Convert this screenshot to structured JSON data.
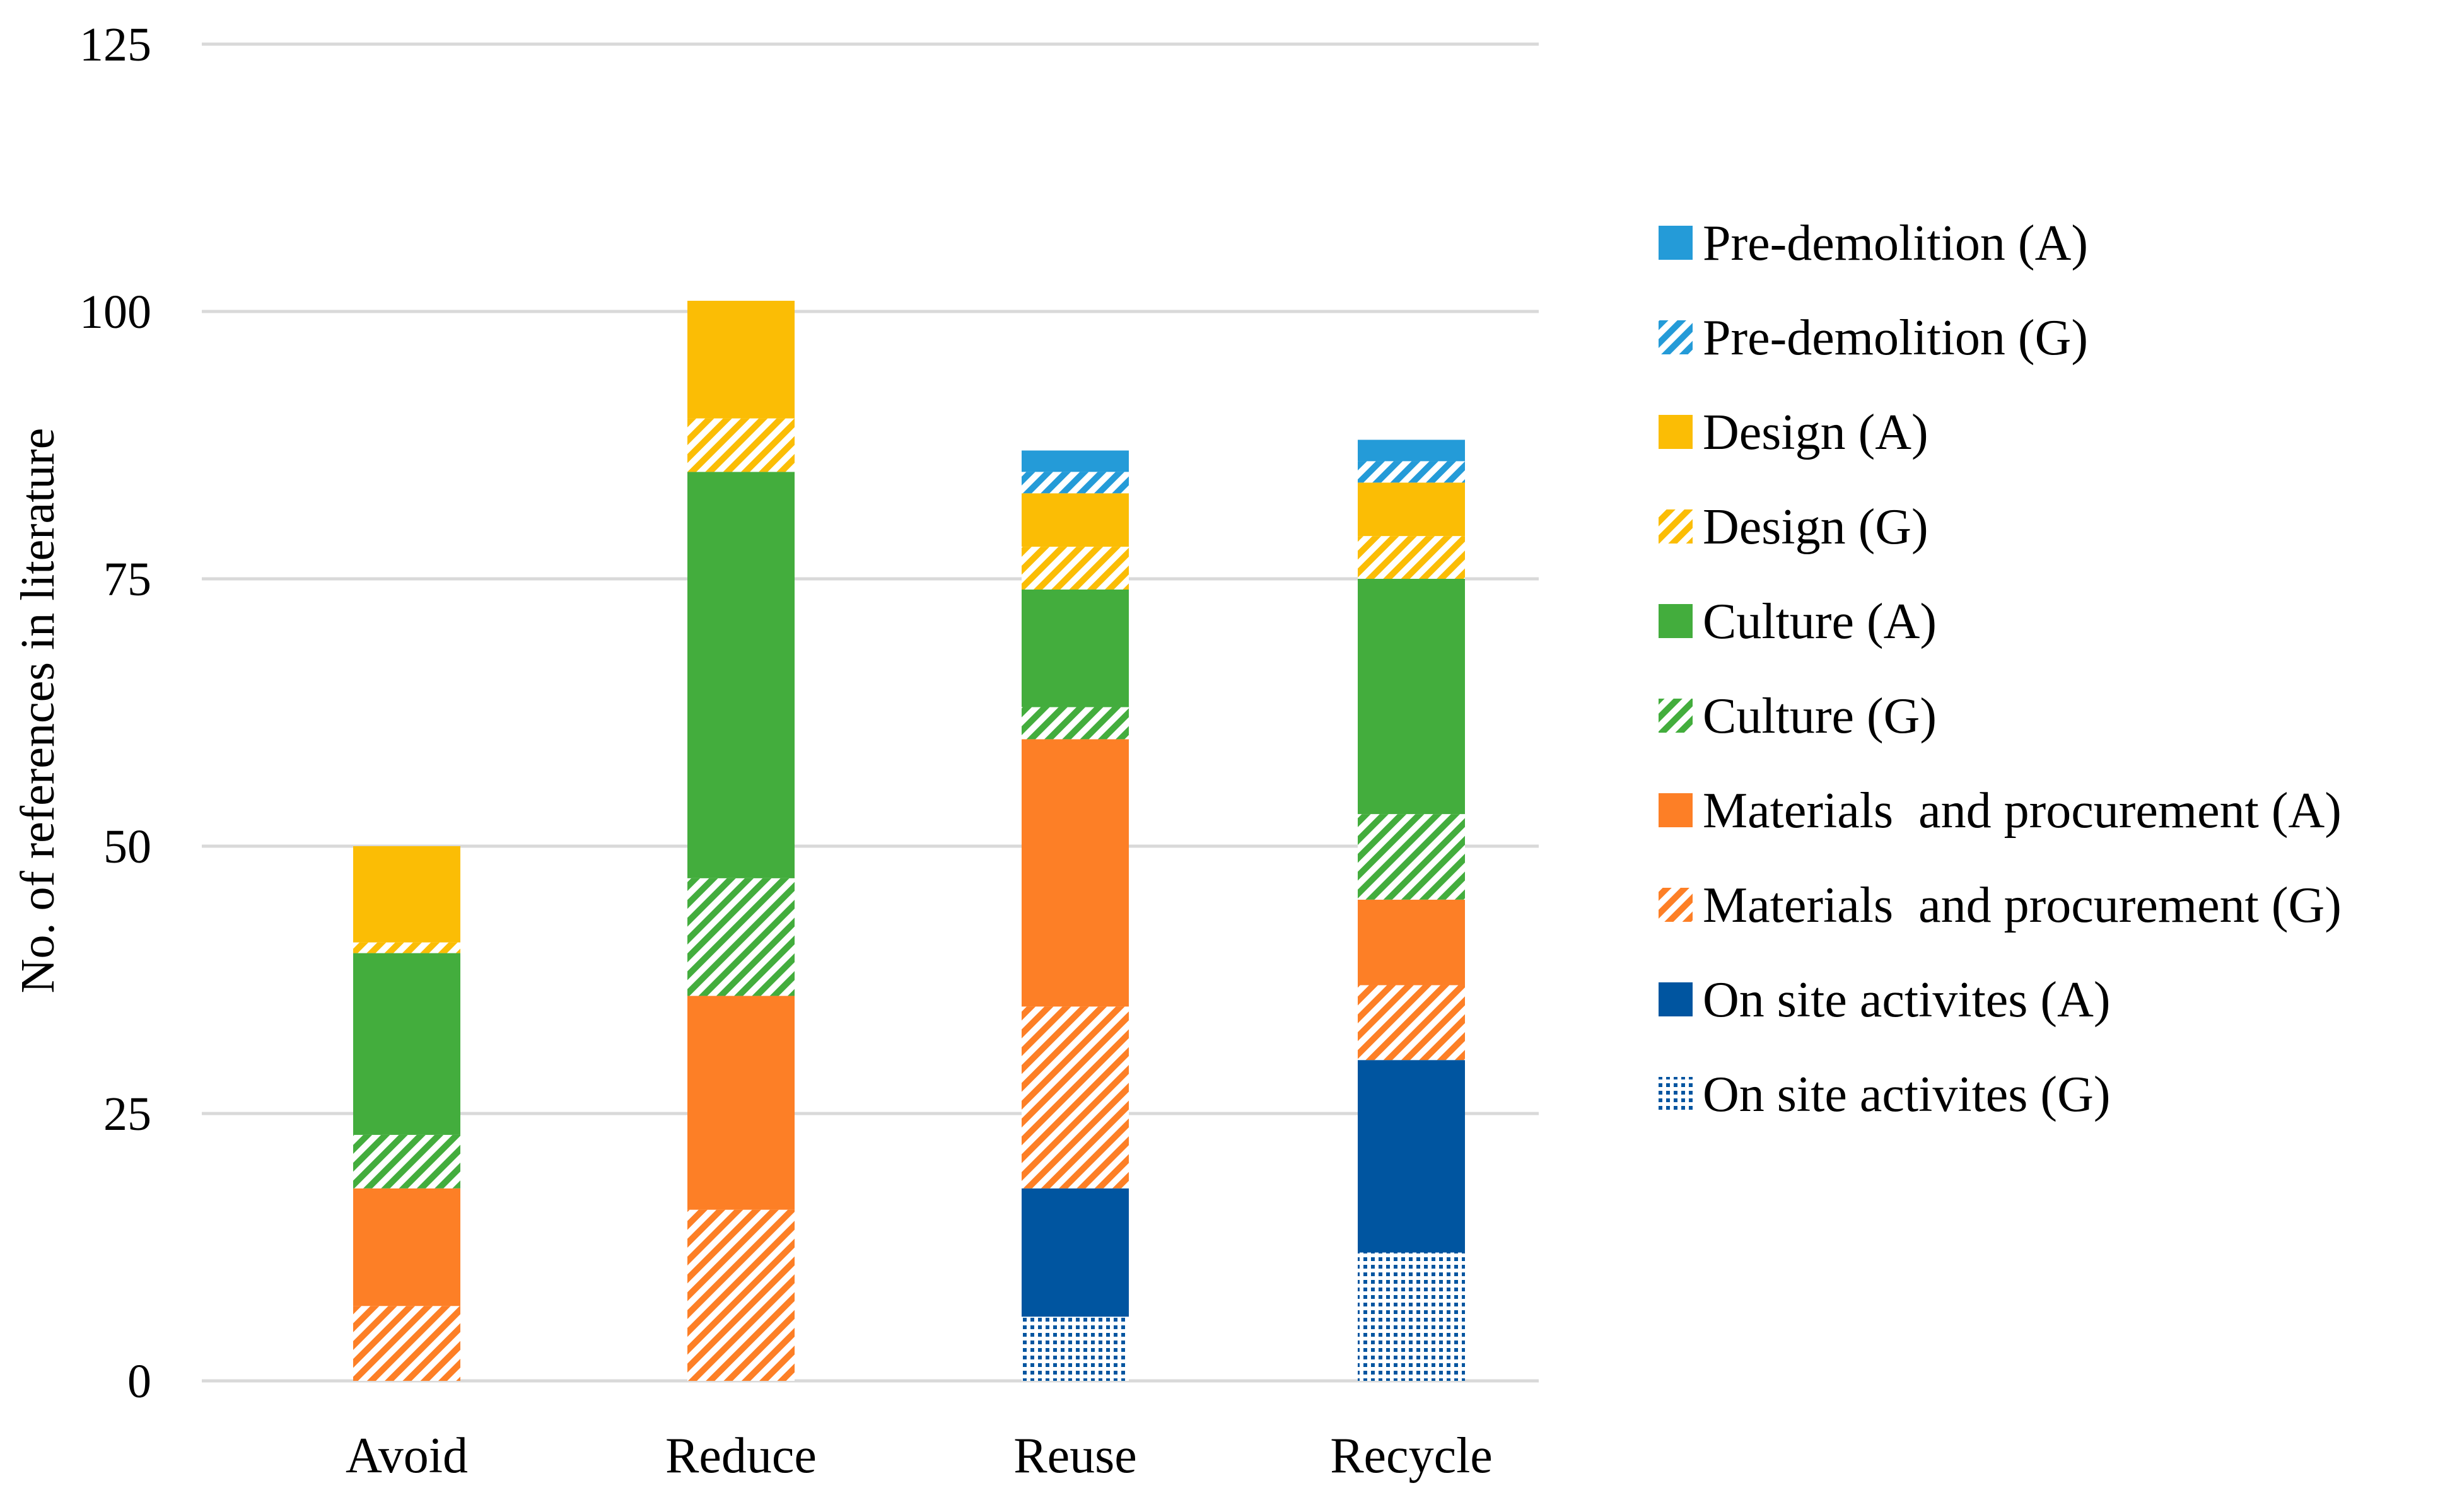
{
  "chart_data": {
    "type": "bar",
    "stacked": true,
    "title": "",
    "xlabel": "",
    "ylabel": "No. of references in literature",
    "ylim": [
      0,
      125
    ],
    "yticks": [
      0,
      25,
      50,
      75,
      100,
      125
    ],
    "grid": true,
    "legend_position": "right",
    "categories": [
      "Avoid",
      "Reduce",
      "Reuse",
      "Recycle"
    ],
    "series": [
      {
        "name": "On site activites (G)",
        "values": [
          0,
          0,
          6,
          12
        ],
        "color": "#0055a0",
        "pattern": "dots"
      },
      {
        "name": "On site activites (A)",
        "values": [
          0,
          0,
          12,
          18
        ],
        "color": "#0055a0",
        "pattern": "solid"
      },
      {
        "name": "Materials  and procurement (G)",
        "values": [
          7,
          16,
          17,
          7
        ],
        "color": "#fd7f26",
        "pattern": "hatch"
      },
      {
        "name": "Materials  and procurement (A)",
        "values": [
          11,
          20,
          25,
          8
        ],
        "color": "#fd7f26",
        "pattern": "solid"
      },
      {
        "name": "Culture (G)",
        "values": [
          5,
          11,
          3,
          8
        ],
        "color": "#43ad3d",
        "pattern": "hatch"
      },
      {
        "name": "Culture (A)",
        "values": [
          17,
          38,
          11,
          22
        ],
        "color": "#43ad3d",
        "pattern": "solid"
      },
      {
        "name": "Design (G)",
        "values": [
          1,
          5,
          4,
          4
        ],
        "color": "#fbbd05",
        "pattern": "hatch"
      },
      {
        "name": "Design (A)",
        "values": [
          9,
          11,
          5,
          5
        ],
        "color": "#fbbd05",
        "pattern": "solid"
      },
      {
        "name": "Pre-demolition (G)",
        "values": [
          0,
          0,
          2,
          2
        ],
        "color": "#249bd8",
        "pattern": "hatch"
      },
      {
        "name": "Pre-demolition (A)",
        "values": [
          0,
          0,
          2,
          2
        ],
        "color": "#249bd8",
        "pattern": "solid"
      }
    ]
  }
}
